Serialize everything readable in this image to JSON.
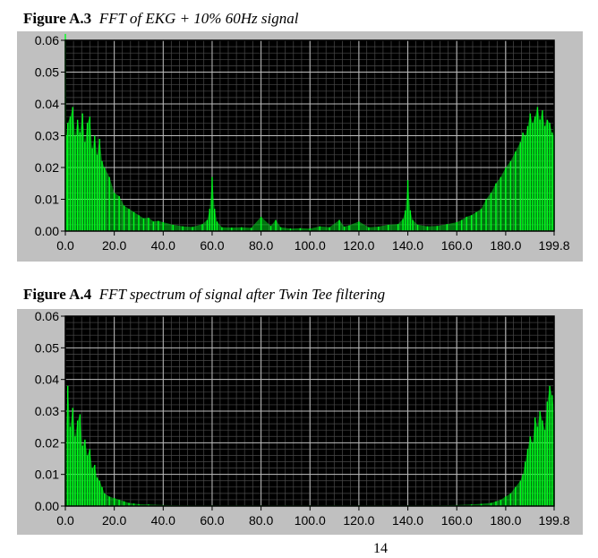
{
  "page": {
    "page_number": "14"
  },
  "chart_data": [
    {
      "type": "area",
      "figure_label": "Figure A.3",
      "title": "FFT of EKG + 10% 60Hz signal",
      "xlabel": "",
      "ylabel": "",
      "xlim": [
        0,
        199.8
      ],
      "ylim": [
        0,
        0.06
      ],
      "x_ticks": [
        "0.0",
        "20.0",
        "40.0",
        "60.0",
        "80.0",
        "100.0",
        "120.0",
        "140.0",
        "160.0",
        "180.0",
        "199.8"
      ],
      "y_ticks": [
        "0.00",
        "0.01",
        "0.02",
        "0.03",
        "0.04",
        "0.05",
        "0.06"
      ],
      "grid": true,
      "series_color": "#00ff1e",
      "background": "#000000",
      "series": [
        {
          "x": [
            0,
            0.4,
            1,
            2,
            3,
            4,
            5,
            6,
            7,
            8,
            9,
            10,
            11,
            12,
            13,
            14,
            15,
            16,
            18,
            20,
            22,
            24,
            26,
            28,
            30,
            32,
            34,
            36,
            38,
            40,
            44,
            48,
            52,
            56,
            58,
            59,
            60,
            61,
            62,
            64,
            68,
            72,
            76,
            80,
            84,
            86,
            88,
            92,
            96,
            100,
            104,
            108,
            112,
            114,
            116,
            120,
            124,
            128,
            132,
            136,
            138,
            139,
            140,
            141,
            142,
            144,
            148,
            152,
            156,
            160,
            162,
            164,
            166,
            168,
            170,
            172,
            174,
            176,
            178,
            180,
            182,
            184,
            186,
            187,
            188,
            189,
            190,
            191,
            192,
            193,
            194,
            195,
            196,
            197,
            198,
            199,
            199.6,
            199.8
          ],
          "values": [
            0.062,
            0.03,
            0.034,
            0.036,
            0.039,
            0.03,
            0.035,
            0.031,
            0.037,
            0.028,
            0.034,
            0.036,
            0.026,
            0.03,
            0.024,
            0.029,
            0.022,
            0.02,
            0.017,
            0.012,
            0.011,
            0.008,
            0.007,
            0.006,
            0.005,
            0.004,
            0.0042,
            0.003,
            0.0032,
            0.0028,
            0.002,
            0.0015,
            0.0013,
            0.0022,
            0.0035,
            0.007,
            0.017,
            0.007,
            0.003,
            0.0012,
            0.0011,
            0.0012,
            0.001,
            0.0045,
            0.0016,
            0.0035,
            0.0012,
            0.0008,
            0.0009,
            0.0008,
            0.0015,
            0.0012,
            0.0035,
            0.0014,
            0.0018,
            0.003,
            0.0012,
            0.0014,
            0.002,
            0.0022,
            0.0038,
            0.0065,
            0.016,
            0.0065,
            0.0035,
            0.002,
            0.0015,
            0.0016,
            0.0022,
            0.0028,
            0.0035,
            0.0045,
            0.005,
            0.006,
            0.007,
            0.01,
            0.012,
            0.015,
            0.017,
            0.02,
            0.022,
            0.025,
            0.028,
            0.031,
            0.03,
            0.033,
            0.037,
            0.034,
            0.036,
            0.039,
            0.035,
            0.038,
            0.033,
            0.035,
            0.034,
            0.031,
            0.03,
            0.033
          ]
        }
      ]
    },
    {
      "type": "area",
      "figure_label": "Figure A.4",
      "title": "FFT spectrum of signal after Twin Tee filtering",
      "xlabel": "",
      "ylabel": "",
      "xlim": [
        0,
        199.8
      ],
      "ylim": [
        0,
        0.06
      ],
      "x_ticks": [
        "0.0",
        "20.0",
        "40.0",
        "60.0",
        "80.0",
        "100.0",
        "120.0",
        "140.0",
        "160.0",
        "180.0",
        "199.8"
      ],
      "y_ticks": [
        "0.00",
        "0.01",
        "0.02",
        "0.03",
        "0.04",
        "0.05",
        "0.06"
      ],
      "grid": true,
      "series_color": "#00ff1e",
      "background": "#000000",
      "series": [
        {
          "x": [
            0,
            1,
            2,
            3,
            4,
            5,
            6,
            7,
            8,
            9,
            10,
            11,
            12,
            13,
            14,
            15,
            16,
            18,
            20,
            22,
            24,
            26,
            28,
            30,
            34,
            40,
            50,
            60,
            70,
            80,
            90,
            100,
            110,
            120,
            130,
            140,
            150,
            160,
            166,
            170,
            174,
            176,
            178,
            180,
            182,
            184,
            186,
            187,
            188,
            189,
            190,
            191,
            192,
            193,
            194,
            195,
            196,
            197,
            198,
            199,
            199.8
          ],
          "values": [
            0.02,
            0.038,
            0.025,
            0.031,
            0.022,
            0.027,
            0.029,
            0.019,
            0.021,
            0.016,
            0.018,
            0.012,
            0.013,
            0.009,
            0.008,
            0.006,
            0.004,
            0.003,
            0.0025,
            0.002,
            0.0015,
            0.001,
            0.0008,
            0.0006,
            0.0005,
            0.0003,
            0.0002,
            0.0002,
            0.0002,
            0.0002,
            0.0002,
            0.0002,
            0.0002,
            0.0002,
            0.0002,
            0.0002,
            0.0002,
            0.0003,
            0.0005,
            0.0007,
            0.001,
            0.0015,
            0.002,
            0.003,
            0.004,
            0.006,
            0.008,
            0.01,
            0.014,
            0.018,
            0.022,
            0.02,
            0.028,
            0.025,
            0.03,
            0.027,
            0.024,
            0.033,
            0.038,
            0.035,
            0.03
          ]
        }
      ]
    }
  ]
}
